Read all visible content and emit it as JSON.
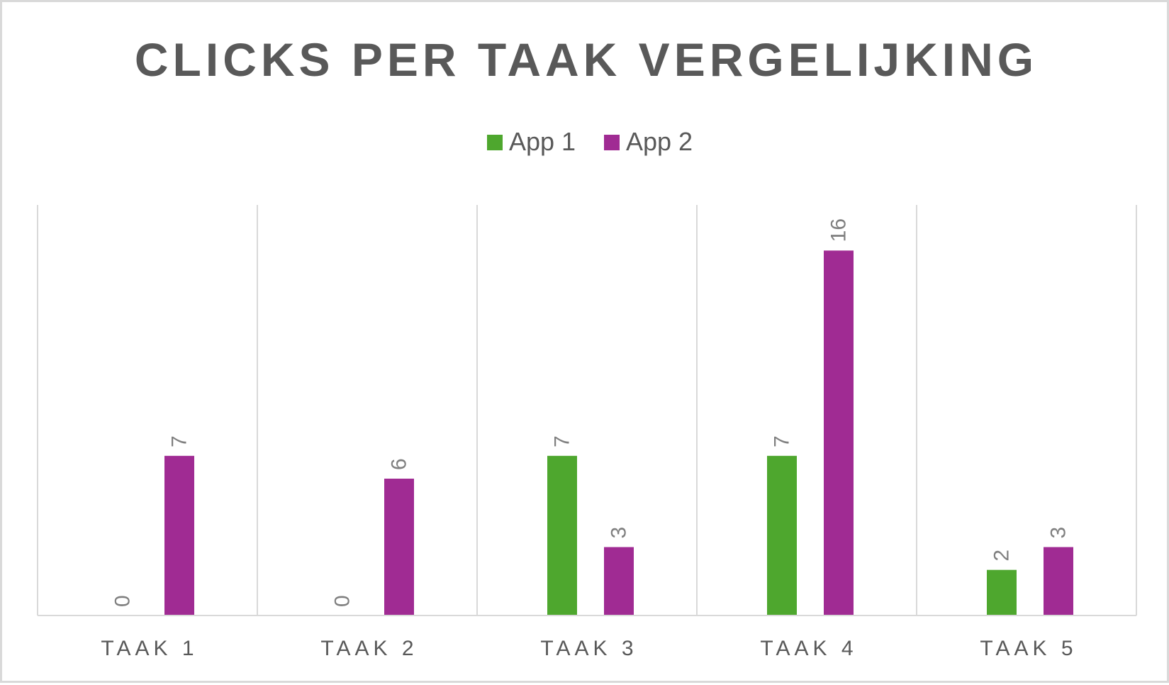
{
  "chart_data": {
    "type": "bar",
    "title": "CLICKS PER TAAK VERGELIJKING",
    "categories": [
      "TAAK 1",
      "TAAK 2",
      "TAAK 3",
      "TAAK 4",
      "TAAK 5"
    ],
    "series": [
      {
        "name": "App 1",
        "color": "#4ea72e",
        "values": [
          0,
          0,
          7,
          7,
          2
        ]
      },
      {
        "name": "App 2",
        "color": "#a02b93",
        "values": [
          7,
          6,
          3,
          16,
          3
        ]
      }
    ],
    "xlabel": "",
    "ylabel": "",
    "ylim": [
      0,
      18
    ],
    "legend": "top",
    "grid": "vertical category separators",
    "data_labels": "rotated, above bars"
  }
}
